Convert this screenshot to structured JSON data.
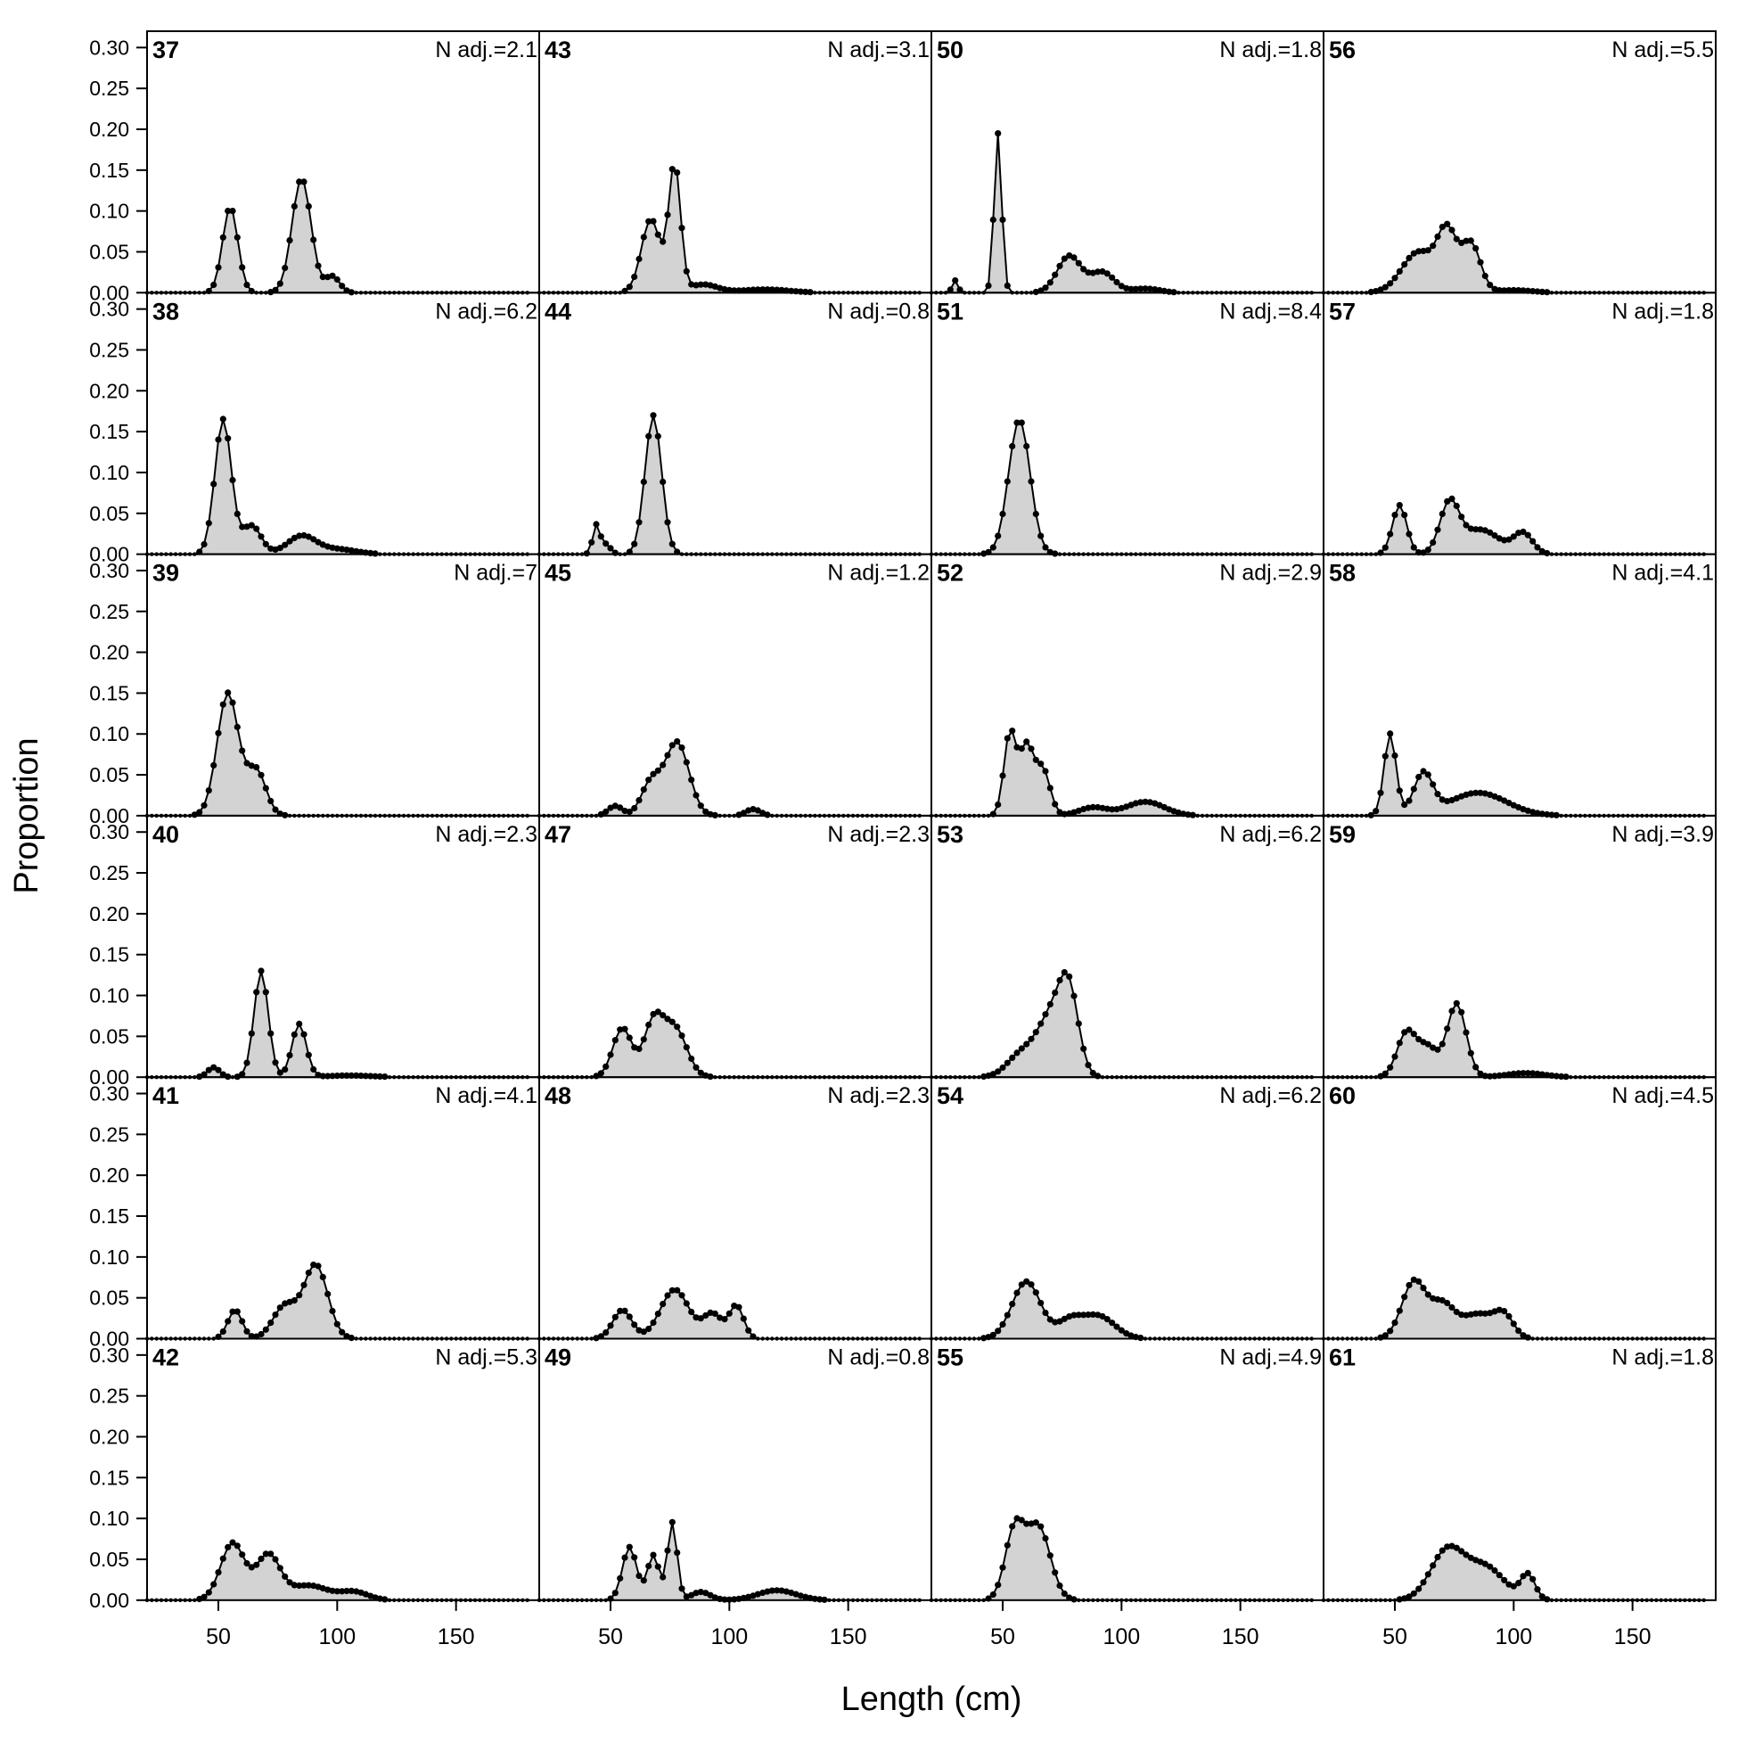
{
  "chart_data": {
    "type": "area",
    "xlabel": "Length (cm)",
    "ylabel": "Proportion",
    "xlim": [
      20,
      185
    ],
    "ylim": [
      0,
      0.32
    ],
    "x_ticks": [
      50,
      100,
      150
    ],
    "y_ticks": [
      "0.00",
      "0.05",
      "0.10",
      "0.15",
      "0.20",
      "0.25",
      "0.30"
    ],
    "grid": false,
    "fill_color": "#d3d3d3",
    "line_color": "#000000",
    "panels": [
      {
        "label": "37",
        "n_adj": "N adj.=2.1",
        "peaks": [
          [
            55,
            0.105,
            3.2
          ],
          [
            85,
            0.14,
            4
          ],
          [
            98,
            0.02,
            3
          ]
        ]
      },
      {
        "label": "38",
        "n_adj": "N adj.=6.2",
        "peaks": [
          [
            52,
            0.165,
            3.5
          ],
          [
            64,
            0.035,
            4
          ],
          [
            85,
            0.022,
            6
          ],
          [
            100,
            0.006,
            8
          ]
        ]
      },
      {
        "label": "39",
        "n_adj": "N adj.=7",
        "peaks": [
          [
            54,
            0.15,
            4.5
          ],
          [
            66,
            0.055,
            4
          ]
        ]
      },
      {
        "label": "40",
        "n_adj": "N adj.=2.3",
        "peaks": [
          [
            48,
            0.012,
            2.5
          ],
          [
            68,
            0.13,
            3
          ],
          [
            84,
            0.065,
            3
          ],
          [
            105,
            0.002,
            10
          ]
        ]
      },
      {
        "label": "41",
        "n_adj": "N adj.=4.1",
        "peaks": [
          [
            57,
            0.035,
            3
          ],
          [
            78,
            0.04,
            5
          ],
          [
            91,
            0.09,
            5
          ]
        ]
      },
      {
        "label": "42",
        "n_adj": "N adj.=5.3",
        "peaks": [
          [
            56,
            0.07,
            5
          ],
          [
            71,
            0.055,
            5
          ],
          [
            88,
            0.018,
            8
          ],
          [
            107,
            0.01,
            6
          ]
        ]
      },
      {
        "label": "43",
        "n_adj": "N adj.=3.1",
        "peaks": [
          [
            67,
            0.09,
            4
          ],
          [
            77,
            0.155,
            2.5
          ],
          [
            89,
            0.01,
            6
          ],
          [
            115,
            0.004,
            10
          ]
        ]
      },
      {
        "label": "44",
        "n_adj": "N adj.=0.8",
        "peaks": [
          [
            44,
            0.035,
            1.5
          ],
          [
            48,
            0.012,
            2
          ],
          [
            68,
            0.17,
            3.5
          ]
        ]
      },
      {
        "label": "45",
        "n_adj": "N adj.=1.2",
        "peaks": [
          [
            52,
            0.012,
            3
          ],
          [
            67,
            0.04,
            4
          ],
          [
            78,
            0.09,
            5
          ],
          [
            110,
            0.008,
            3
          ]
        ]
      },
      {
        "label": "47",
        "n_adj": "N adj.=2.3",
        "peaks": [
          [
            55,
            0.06,
            4
          ],
          [
            68,
            0.065,
            4
          ],
          [
            77,
            0.06,
            5
          ]
        ]
      },
      {
        "label": "48",
        "n_adj": "N adj.=2.3",
        "peaks": [
          [
            55,
            0.035,
            4
          ],
          [
            77,
            0.06,
            6
          ],
          [
            93,
            0.03,
            4
          ],
          [
            103,
            0.04,
            3
          ]
        ]
      },
      {
        "label": "49",
        "n_adj": "N adj.=0.8",
        "peaks": [
          [
            58,
            0.065,
            3
          ],
          [
            68,
            0.055,
            2.5
          ],
          [
            76,
            0.095,
            2
          ],
          [
            88,
            0.01,
            4
          ],
          [
            120,
            0.012,
            8
          ]
        ]
      },
      {
        "label": "50",
        "n_adj": "N adj.=1.8",
        "peaks": [
          [
            30,
            0.015,
            1.2
          ],
          [
            48,
            0.195,
            1.6
          ],
          [
            78,
            0.045,
            5
          ],
          [
            92,
            0.025,
            5
          ],
          [
            110,
            0.005,
            6
          ]
        ]
      },
      {
        "label": "51",
        "n_adj": "N adj.=8.4",
        "peaks": [
          [
            57,
            0.165,
            4.5
          ]
        ]
      },
      {
        "label": "52",
        "n_adj": "N adj.=2.9",
        "peaks": [
          [
            53,
            0.1,
            2.5
          ],
          [
            60,
            0.085,
            3
          ],
          [
            67,
            0.055,
            3
          ],
          [
            88,
            0.01,
            6
          ],
          [
            110,
            0.017,
            8
          ]
        ]
      },
      {
        "label": "53",
        "n_adj": "N adj.=6.2",
        "peaks": [
          [
            58,
            0.028,
            6
          ],
          [
            71,
            0.075,
            6
          ],
          [
            78,
            0.085,
            4
          ]
        ]
      },
      {
        "label": "54",
        "n_adj": "N adj.=6.2",
        "peaks": [
          [
            60,
            0.07,
            6
          ],
          [
            78,
            0.02,
            5
          ],
          [
            90,
            0.028,
            7
          ]
        ]
      },
      {
        "label": "55",
        "n_adj": "N adj.=4.9",
        "peaks": [
          [
            55,
            0.085,
            4
          ],
          [
            65,
            0.09,
            5
          ]
        ]
      },
      {
        "label": "56",
        "n_adj": "N adj.=5.5",
        "peaks": [
          [
            60,
            0.05,
            7
          ],
          [
            72,
            0.07,
            4
          ],
          [
            82,
            0.06,
            4
          ],
          [
            100,
            0.003,
            8
          ]
        ]
      },
      {
        "label": "57",
        "n_adj": "N adj.=1.8",
        "peaks": [
          [
            52,
            0.06,
            3
          ],
          [
            73,
            0.06,
            4
          ],
          [
            86,
            0.03,
            8
          ],
          [
            104,
            0.025,
            4
          ]
        ]
      },
      {
        "label": "58",
        "n_adj": "N adj.=4.1",
        "peaks": [
          [
            48,
            0.1,
            2.5
          ],
          [
            62,
            0.05,
            4
          ],
          [
            85,
            0.028,
            12
          ]
        ]
      },
      {
        "label": "59",
        "n_adj": "N adj.=3.9",
        "peaks": [
          [
            55,
            0.055,
            4
          ],
          [
            64,
            0.035,
            4
          ],
          [
            76,
            0.09,
            4
          ],
          [
            105,
            0.005,
            8
          ]
        ]
      },
      {
        "label": "60",
        "n_adj": "N adj.=4.5",
        "peaks": [
          [
            58,
            0.07,
            5
          ],
          [
            70,
            0.04,
            5
          ],
          [
            85,
            0.03,
            7
          ],
          [
            96,
            0.025,
            4
          ]
        ]
      },
      {
        "label": "61",
        "n_adj": "N adj.=1.8",
        "peaks": [
          [
            72,
            0.06,
            7
          ],
          [
            88,
            0.04,
            8
          ],
          [
            106,
            0.03,
            3
          ]
        ]
      }
    ]
  }
}
